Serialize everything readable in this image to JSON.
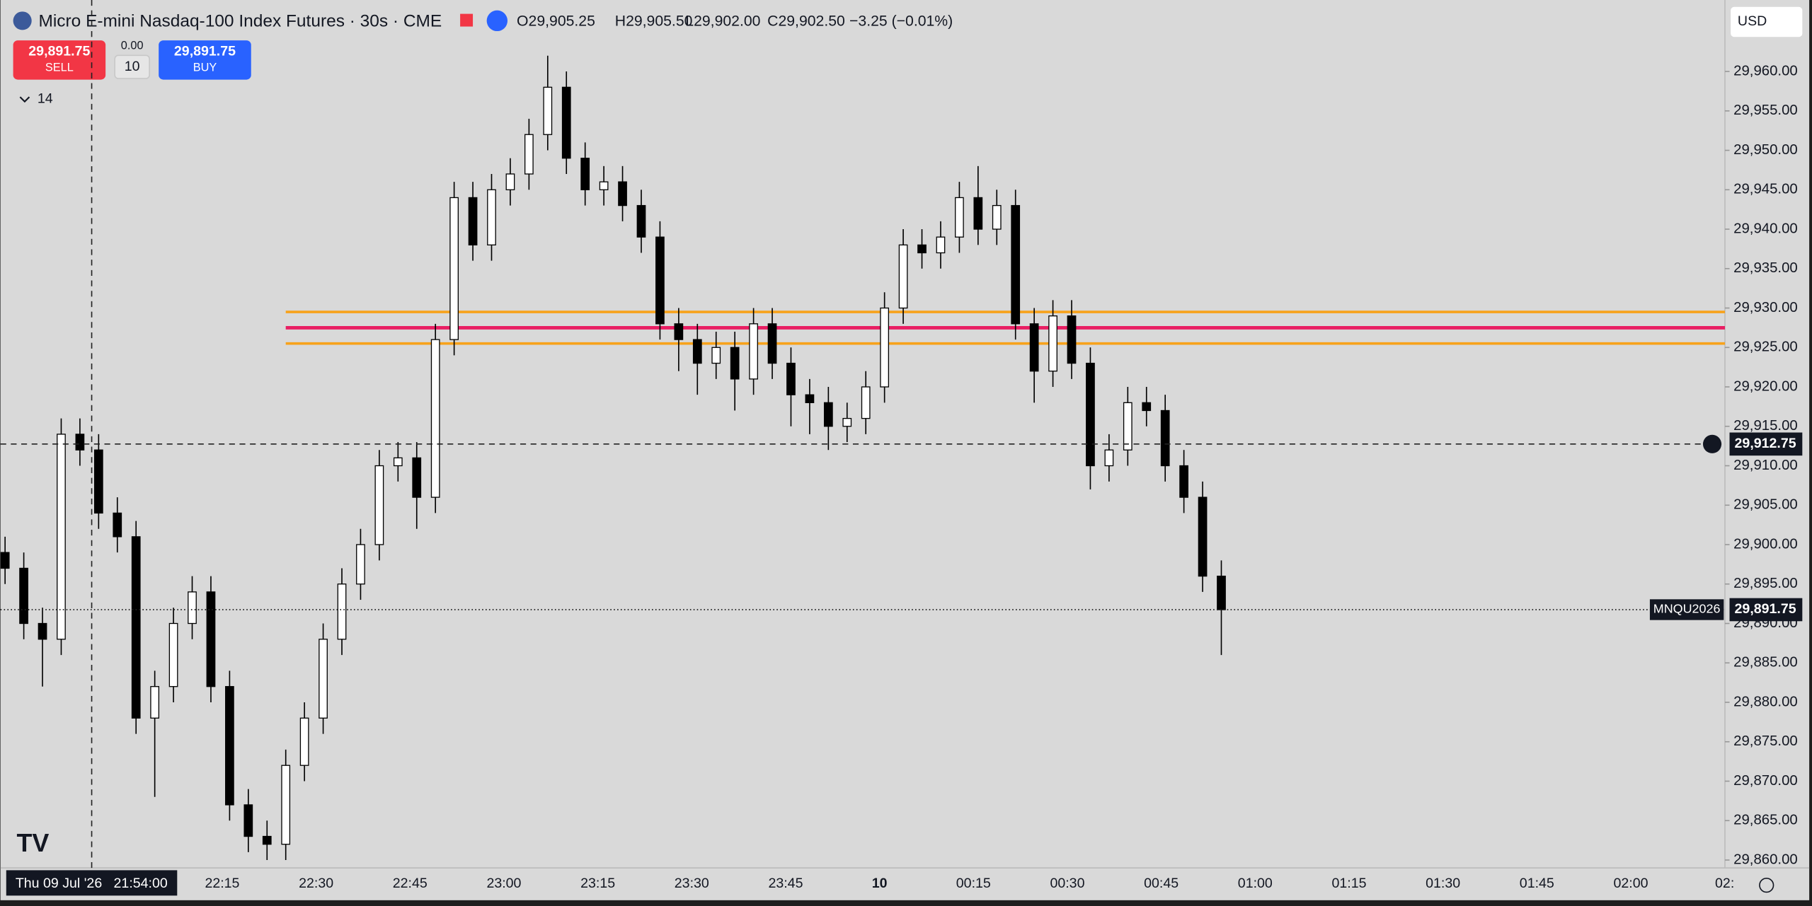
{
  "header": {
    "title": "Micro E-mini Nasdaq-100 Index Futures · 30s · CME",
    "open": "O29,905.25",
    "high": "H29,905.50",
    "low": "L29,902.00",
    "close": "C29,902.50",
    "change": "−3.25 (−0.01%)",
    "currency": "USD"
  },
  "trade": {
    "sell_price": "29,891.75",
    "sell": "SELL",
    "buy_price": "29,891.75",
    "buy": "BUY",
    "spread": "0.00",
    "quantity": "10"
  },
  "indicators_count": "14",
  "crosshair": {
    "value": 29912.75,
    "label": "29,912.75",
    "date": "Thu 09 Jul '26",
    "time": "21:54:00"
  },
  "last_price": {
    "symbol": "MNQU2026",
    "value": 29891.75,
    "label": "29,891.75"
  },
  "chart_data": {
    "type": "candlestick",
    "x_tick_labels": [
      "22:15",
      "22:30",
      "22:45",
      "23:00",
      "23:15",
      "23:30",
      "23:45",
      "10",
      "00:15",
      "00:30",
      "00:45",
      "01:00",
      "01:15",
      "01:30",
      "01:45",
      "02:00",
      "02:"
    ],
    "open": [
      29899,
      29897,
      29890,
      29888,
      29914,
      29912,
      29904,
      29901,
      29878,
      29882,
      29890,
      29894,
      29882,
      29867,
      29863,
      29862,
      29872,
      29878,
      29888,
      29895,
      29900,
      29910,
      29911,
      29906,
      29926,
      29944,
      29938,
      29945,
      29947,
      29952,
      29958,
      29949,
      29945,
      29946,
      29943,
      29939,
      29928,
      29926,
      29923,
      29925,
      29921,
      29928,
      29923,
      29919,
      29918,
      29915,
      29916,
      29920,
      29930,
      29938,
      29937,
      29939,
      29944,
      29940,
      29943,
      29928,
      29922,
      29929,
      29923,
      29910,
      29912,
      29918,
      29917,
      29910,
      29906,
      29896
    ],
    "high": [
      29901,
      29899,
      29892,
      29916,
      29916,
      29914,
      29906,
      29903,
      29884,
      29892,
      29896,
      29896,
      29884,
      29869,
      29865,
      29874,
      29880,
      29890,
      29897,
      29902,
      29912,
      29913,
      29913,
      29928,
      29946,
      29946,
      29947,
      29949,
      29954,
      29962,
      29960,
      29951,
      29948,
      29948,
      29945,
      29941,
      29930,
      29928,
      29927,
      29927,
      29930,
      29930,
      29925,
      29921,
      29920,
      29918,
      29922,
      29932,
      29940,
      29940,
      29941,
      29946,
      29948,
      29945,
      29945,
      29930,
      29931,
      29931,
      29925,
      29914,
      29920,
      29920,
      29919,
      29912,
      29908,
      29898
    ],
    "low": [
      29895,
      29888,
      29882,
      29886,
      29910,
      29902,
      29899,
      29876,
      29868,
      29880,
      29888,
      29880,
      29865,
      29861,
      29860,
      29860,
      29870,
      29876,
      29886,
      29893,
      29898,
      29908,
      29902,
      29904,
      29924,
      29936,
      29936,
      29943,
      29945,
      29950,
      29947,
      29943,
      29943,
      29941,
      29937,
      29926,
      29922,
      29919,
      29921,
      29917,
      29919,
      29921,
      29915,
      29914,
      29912,
      29913,
      29914,
      29918,
      29928,
      29935,
      29935,
      29937,
      29938,
      29938,
      29926,
      29918,
      29920,
      29921,
      29907,
      29908,
      29910,
      29915,
      29908,
      29904,
      29894,
      29886
    ],
    "close": [
      29897,
      29890,
      29888,
      29914,
      29912,
      29904,
      29901,
      29878,
      29882,
      29890,
      29894,
      29882,
      29867,
      29863,
      29862,
      29872,
      29878,
      29888,
      29895,
      29900,
      29910,
      29911,
      29906,
      29926,
      29944,
      29938,
      29945,
      29947,
      29952,
      29958,
      29949,
      29945,
      29946,
      29943,
      29939,
      29928,
      29926,
      29923,
      29925,
      29921,
      29928,
      29923,
      29919,
      29918,
      29915,
      29916,
      29920,
      29930,
      29938,
      29937,
      29939,
      29944,
      29940,
      29943,
      29928,
      29922,
      29929,
      29923,
      29910,
      29912,
      29918,
      29917,
      29910,
      29906,
      29896,
      29891.75
    ],
    "ylim": [
      29859,
      29963.5
    ],
    "yticks": [
      {
        "value": 29860,
        "label": "29,860.00"
      },
      {
        "value": 29865,
        "label": "29,865.00"
      },
      {
        "value": 29870,
        "label": "29,870.00"
      },
      {
        "value": 29875,
        "label": "29,875.00"
      },
      {
        "value": 29880,
        "label": "29,880.00"
      },
      {
        "value": 29885,
        "label": "29,885.00"
      },
      {
        "value": 29890,
        "label": "29,890.00"
      },
      {
        "value": 29895,
        "label": "29,895.00"
      },
      {
        "value": 29900,
        "label": "29,900.00"
      },
      {
        "value": 29905,
        "label": "29,905.00"
      },
      {
        "value": 29910,
        "label": "29,910.00"
      },
      {
        "value": 29915,
        "label": "29,915.00"
      },
      {
        "value": 29920,
        "label": "29,920.00"
      },
      {
        "value": 29925,
        "label": "29,925.00"
      },
      {
        "value": 29930,
        "label": "29,930.00"
      },
      {
        "value": 29935,
        "label": "29,935.00"
      },
      {
        "value": 29940,
        "label": "29,940.00"
      },
      {
        "value": 29945,
        "label": "29,945.00"
      },
      {
        "value": 29950,
        "label": "29,950.00"
      },
      {
        "value": 29955,
        "label": "29,955.00"
      },
      {
        "value": 29960,
        "label": "29,960.00"
      }
    ],
    "up_color": "#ffffff",
    "down_color": "#000000",
    "levels": [
      {
        "value": 29929.5,
        "color": "#f7a21b"
      },
      {
        "value": 29927.5,
        "color": "#e91e63"
      },
      {
        "value": 29925.5,
        "color": "#f7a21b"
      }
    ]
  }
}
